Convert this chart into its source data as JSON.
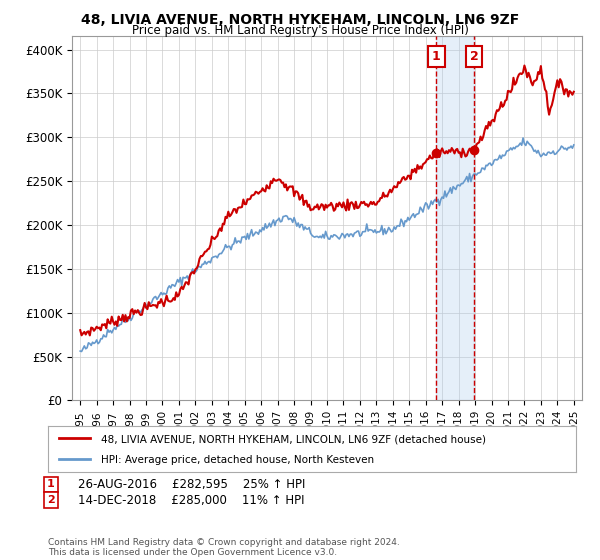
{
  "title": "48, LIVIA AVENUE, NORTH HYKEHAM, LINCOLN, LN6 9ZF",
  "subtitle": "Price paid vs. HM Land Registry's House Price Index (HPI)",
  "ylabel_ticks": [
    "£0",
    "£50K",
    "£100K",
    "£150K",
    "£200K",
    "£250K",
    "£300K",
    "£350K",
    "£400K"
  ],
  "ytick_vals": [
    0,
    50000,
    100000,
    150000,
    200000,
    250000,
    300000,
    350000,
    400000
  ],
  "ylim": [
    0,
    415000
  ],
  "xlim_start": 1994.5,
  "xlim_end": 2025.5,
  "sale1_date": 2016.65,
  "sale1_price": 282595,
  "sale1_label": "1",
  "sale1_info": "26-AUG-2016    £282,595    25% ↑ HPI",
  "sale2_date": 2018.95,
  "sale2_price": 285000,
  "sale2_label": "2",
  "sale2_info": "14-DEC-2018    £285,000    11% ↑ HPI",
  "legend_line1": "48, LIVIA AVENUE, NORTH HYKEHAM, LINCOLN, LN6 9ZF (detached house)",
  "legend_line2": "HPI: Average price, detached house, North Kesteven",
  "footer": "Contains HM Land Registry data © Crown copyright and database right 2024.\nThis data is licensed under the Open Government Licence v3.0.",
  "line1_color": "#cc0000",
  "line2_color": "#6699cc",
  "marker_color": "#cc0000",
  "vline_color": "#cc0000",
  "box_color": "#cc0000",
  "background_color": "#ffffff",
  "grid_color": "#cccccc"
}
